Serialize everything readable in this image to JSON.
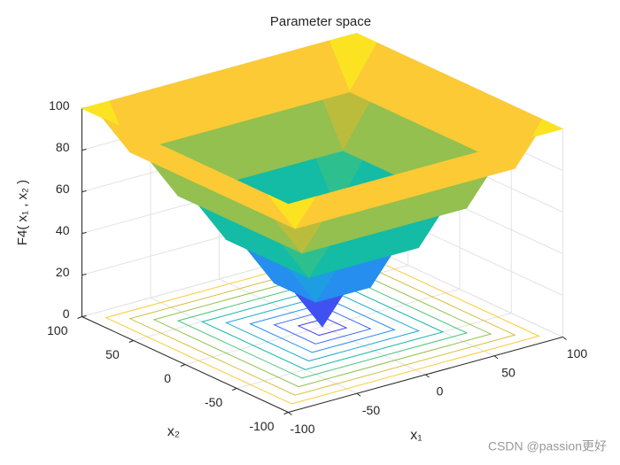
{
  "chart_data": {
    "type": "surface3d",
    "title": "Parameter space",
    "xlabel": "x₁",
    "ylabel": "x₂",
    "zlabel": "F4( x₁ , x₂ )",
    "x1": [
      -100,
      -80,
      -60,
      -40,
      -20,
      0,
      20,
      40,
      60,
      80,
      100
    ],
    "x2": [
      -100,
      -80,
      -60,
      -40,
      -20,
      0,
      20,
      40,
      60,
      80,
      100
    ],
    "z": [
      [
        100,
        100,
        100,
        100,
        100,
        100,
        100,
        100,
        100,
        100,
        100
      ],
      [
        100,
        80,
        80,
        80,
        80,
        80,
        80,
        80,
        80,
        80,
        100
      ],
      [
        100,
        80,
        60,
        60,
        60,
        60,
        60,
        60,
        60,
        80,
        100
      ],
      [
        100,
        80,
        60,
        40,
        40,
        40,
        40,
        40,
        60,
        80,
        100
      ],
      [
        100,
        80,
        60,
        40,
        20,
        20,
        20,
        40,
        60,
        80,
        100
      ],
      [
        100,
        80,
        60,
        40,
        20,
        0,
        20,
        40,
        60,
        80,
        100
      ],
      [
        100,
        80,
        60,
        40,
        20,
        20,
        20,
        40,
        60,
        80,
        100
      ],
      [
        100,
        80,
        60,
        40,
        40,
        40,
        40,
        40,
        60,
        80,
        100
      ],
      [
        100,
        80,
        60,
        60,
        60,
        60,
        60,
        60,
        60,
        80,
        100
      ],
      [
        100,
        80,
        80,
        80,
        80,
        80,
        80,
        80,
        80,
        80,
        100
      ],
      [
        100,
        100,
        100,
        100,
        100,
        100,
        100,
        100,
        100,
        100,
        100
      ]
    ],
    "contour_levels": [
      10,
      20,
      30,
      40,
      50,
      60,
      70,
      80,
      90
    ],
    "xlim": [
      -100,
      100
    ],
    "xticks": [
      -100,
      -50,
      0,
      50,
      100
    ],
    "ylim": [
      -100,
      100
    ],
    "yticks": [
      -100,
      -50,
      0,
      50,
      100
    ],
    "zlim": [
      0,
      100
    ],
    "zticks": [
      0,
      20,
      40,
      60,
      80,
      100
    ],
    "grid": true,
    "colormap": [
      "#3e26a8",
      "#4545f0",
      "#2d7ffa",
      "#1aa4dc",
      "#14bba5",
      "#56c56c",
      "#bcbc3c",
      "#fdbe3d",
      "#f9fb0e"
    ],
    "watermark": "CSDN @passion更好"
  }
}
